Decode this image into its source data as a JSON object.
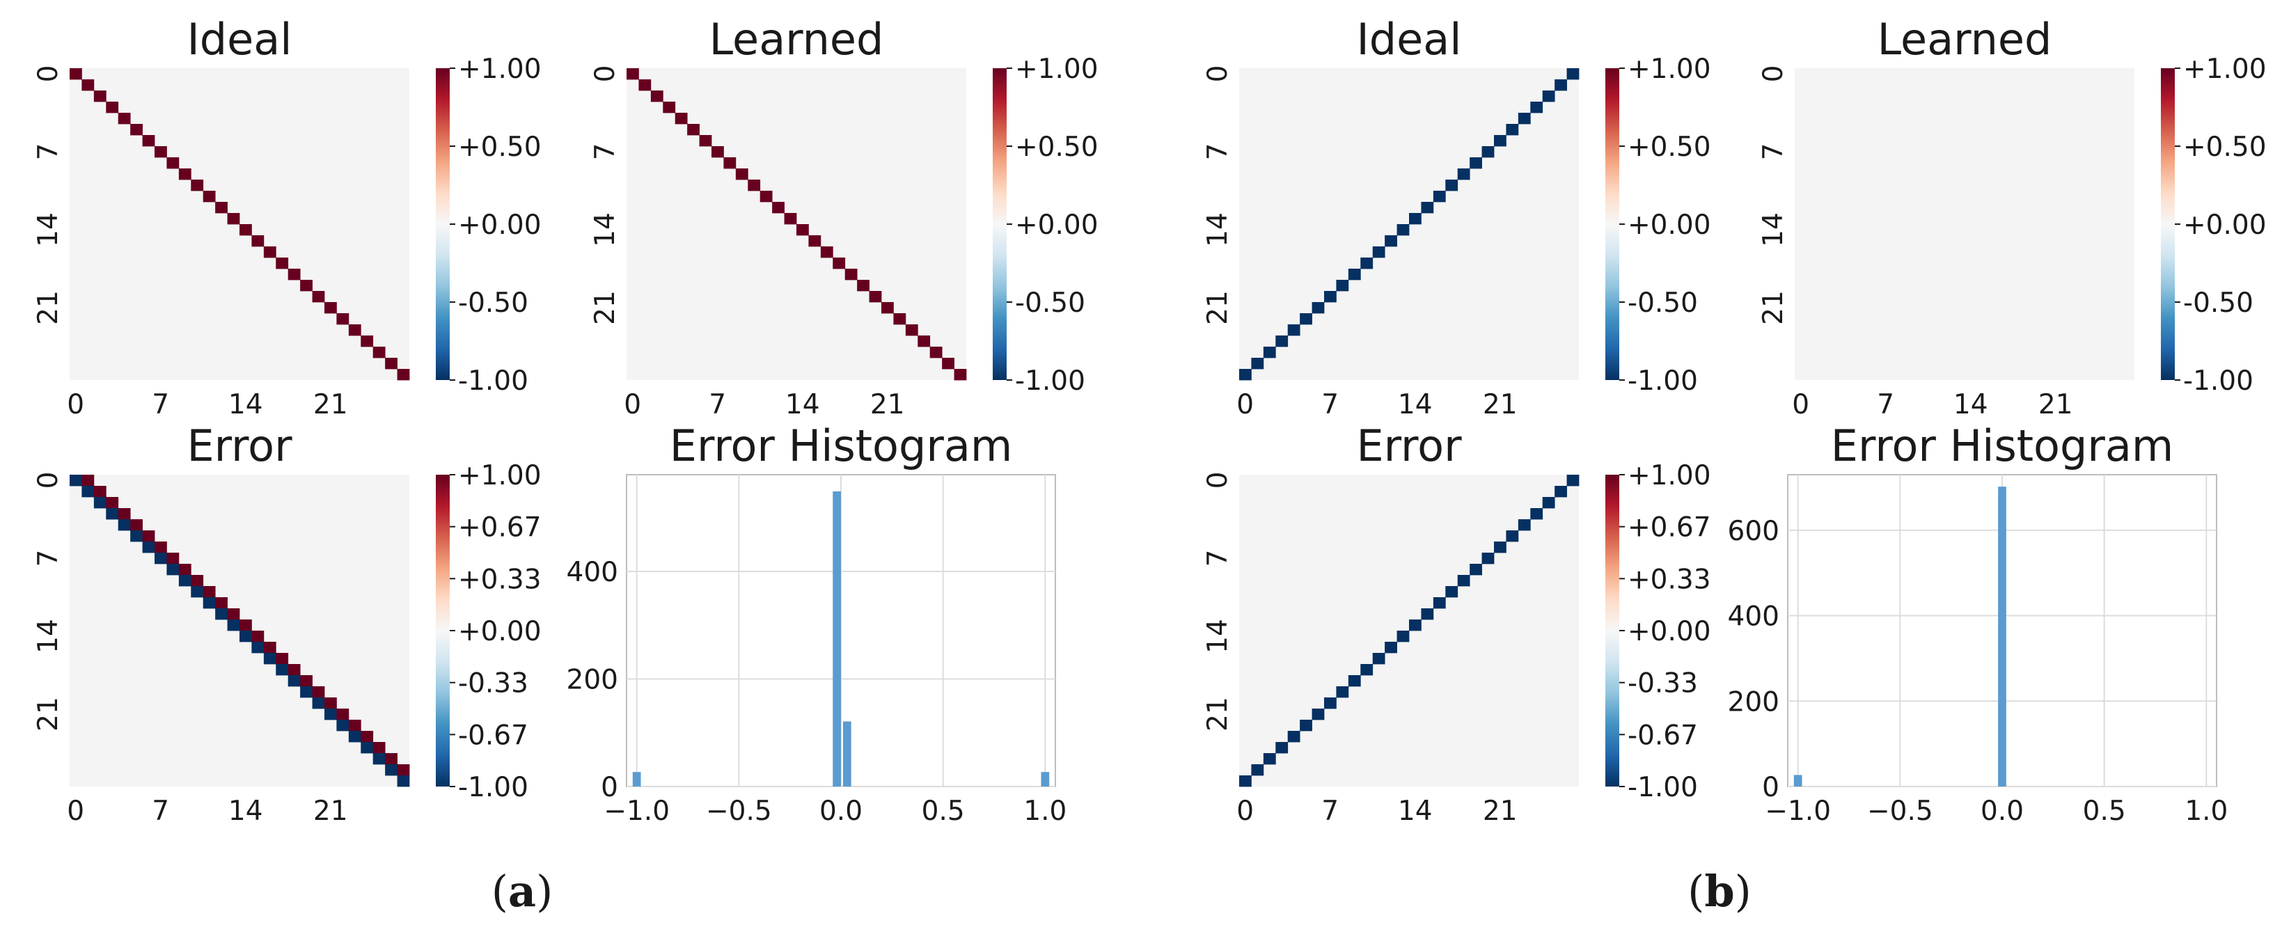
{
  "figure": {
    "captions": [
      "(a)",
      "(b)"
    ],
    "caption_parts": [
      {
        "open": "(",
        "letter": "a",
        "close": ")"
      },
      {
        "open": "(",
        "letter": "b",
        "close": ")"
      }
    ]
  },
  "colors": {
    "cmap": [
      "#053061",
      "#2166ac",
      "#4393c3",
      "#92c5de",
      "#d1e5f0",
      "#f7f7f7",
      "#fddbc7",
      "#f4a582",
      "#d6604d",
      "#b2182b",
      "#67001f"
    ],
    "background_cell": "#f4f4f4",
    "hist_bar": "#5b9bd0",
    "grid": "#dcdcdc",
    "frame": "#bdbdbd"
  },
  "chart_data": [
    {
      "type": "heatmap",
      "panel": "a",
      "title": "Ideal",
      "size": 28,
      "diagonal": "main",
      "diagonal_value": 1.0,
      "offdiag_value": 0.0,
      "xticks": [
        "0",
        "7",
        "14",
        "21"
      ],
      "yticks": [
        "0",
        "7",
        "14",
        "21"
      ],
      "colorbar_ticks": [
        "+1.00",
        "+0.50",
        "+0.00",
        "-0.50",
        "-1.00"
      ],
      "vmin": -1,
      "vmax": 1
    },
    {
      "type": "heatmap",
      "panel": "a",
      "title": "Learned",
      "size": 28,
      "diagonal": "main",
      "diagonal_value": 1.0,
      "offdiag_value": 0.0,
      "xticks": [
        "0",
        "7",
        "14",
        "21"
      ],
      "yticks": [
        "0",
        "7",
        "14",
        "21"
      ],
      "colorbar_ticks": [
        "+1.00",
        "+0.50",
        "+0.00",
        "-0.50",
        "-1.00"
      ],
      "vmin": -1,
      "vmax": 1
    },
    {
      "type": "heatmap",
      "panel": "a",
      "title": "Error",
      "size": 28,
      "diagonal": "main",
      "diagonal_value": -1.0,
      "superdiag_value": 1.0,
      "offdiag_value": 0.0,
      "xticks": [
        "0",
        "7",
        "14",
        "21"
      ],
      "yticks": [
        "0",
        "7",
        "14",
        "21"
      ],
      "colorbar_ticks": [
        "+1.00",
        "+0.67",
        "+0.33",
        "+0.00",
        "-0.33",
        "-0.67",
        "-1.00"
      ],
      "vmin": -1,
      "vmax": 1
    },
    {
      "type": "bar",
      "panel": "a",
      "title": "Error Histogram",
      "xlim": [
        -1.05,
        1.05
      ],
      "ylim": [
        0,
        580
      ],
      "xticks": [
        "−1.0",
        "−0.5",
        "0.0",
        "0.5",
        "1.0"
      ],
      "xtick_values": [
        -1.0,
        -0.5,
        0.0,
        0.5,
        1.0
      ],
      "yticks": [
        "0",
        "200",
        "400"
      ],
      "ytick_values": [
        0,
        200,
        400
      ],
      "bins": [
        {
          "x": -1.0,
          "count": 27
        },
        {
          "x": -0.02,
          "count": 549
        },
        {
          "x": 0.03,
          "count": 121
        },
        {
          "x": 1.0,
          "count": 27
        }
      ],
      "bin_width": 0.04
    },
    {
      "type": "heatmap",
      "panel": "b",
      "title": "Ideal",
      "size": 28,
      "diagonal": "anti",
      "diagonal_value": -1.0,
      "offdiag_value": 0.0,
      "xticks": [
        "0",
        "7",
        "14",
        "21"
      ],
      "yticks": [
        "0",
        "7",
        "14",
        "21"
      ],
      "colorbar_ticks": [
        "+1.00",
        "+0.50",
        "+0.00",
        "-0.50",
        "-1.00"
      ],
      "vmin": -1,
      "vmax": 1
    },
    {
      "type": "heatmap",
      "panel": "b",
      "title": "Learned",
      "size": 28,
      "diagonal": "none",
      "offdiag_value": 0.0,
      "xticks": [
        "0",
        "7",
        "14",
        "21"
      ],
      "yticks": [
        "0",
        "7",
        "14",
        "21"
      ],
      "colorbar_ticks": [
        "+1.00",
        "+0.50",
        "+0.00",
        "-0.50",
        "-1.00"
      ],
      "vmin": -1,
      "vmax": 1
    },
    {
      "type": "heatmap",
      "panel": "b",
      "title": "Error",
      "size": 28,
      "diagonal": "anti",
      "diagonal_value": -1.0,
      "offdiag_value": 0.0,
      "xticks": [
        "0",
        "7",
        "14",
        "21"
      ],
      "yticks": [
        "0",
        "7",
        "14",
        "21"
      ],
      "colorbar_ticks": [
        "+1.00",
        "+0.67",
        "+0.33",
        "+0.00",
        "-0.33",
        "-0.67",
        "-1.00"
      ],
      "vmin": -1,
      "vmax": 1
    },
    {
      "type": "bar",
      "panel": "b",
      "title": "Error Histogram",
      "xlim": [
        -1.05,
        1.05
      ],
      "ylim": [
        0,
        730
      ],
      "xticks": [
        "−1.0",
        "−0.5",
        "0.0",
        "0.5",
        "1.0"
      ],
      "xtick_values": [
        -1.0,
        -0.5,
        0.0,
        0.5,
        1.0
      ],
      "yticks": [
        "0",
        "200",
        "400",
        "600"
      ],
      "ytick_values": [
        0,
        200,
        400,
        600
      ],
      "bins": [
        {
          "x": -1.0,
          "count": 27
        },
        {
          "x": 0.0,
          "count": 702
        }
      ],
      "bin_width": 0.04
    }
  ]
}
